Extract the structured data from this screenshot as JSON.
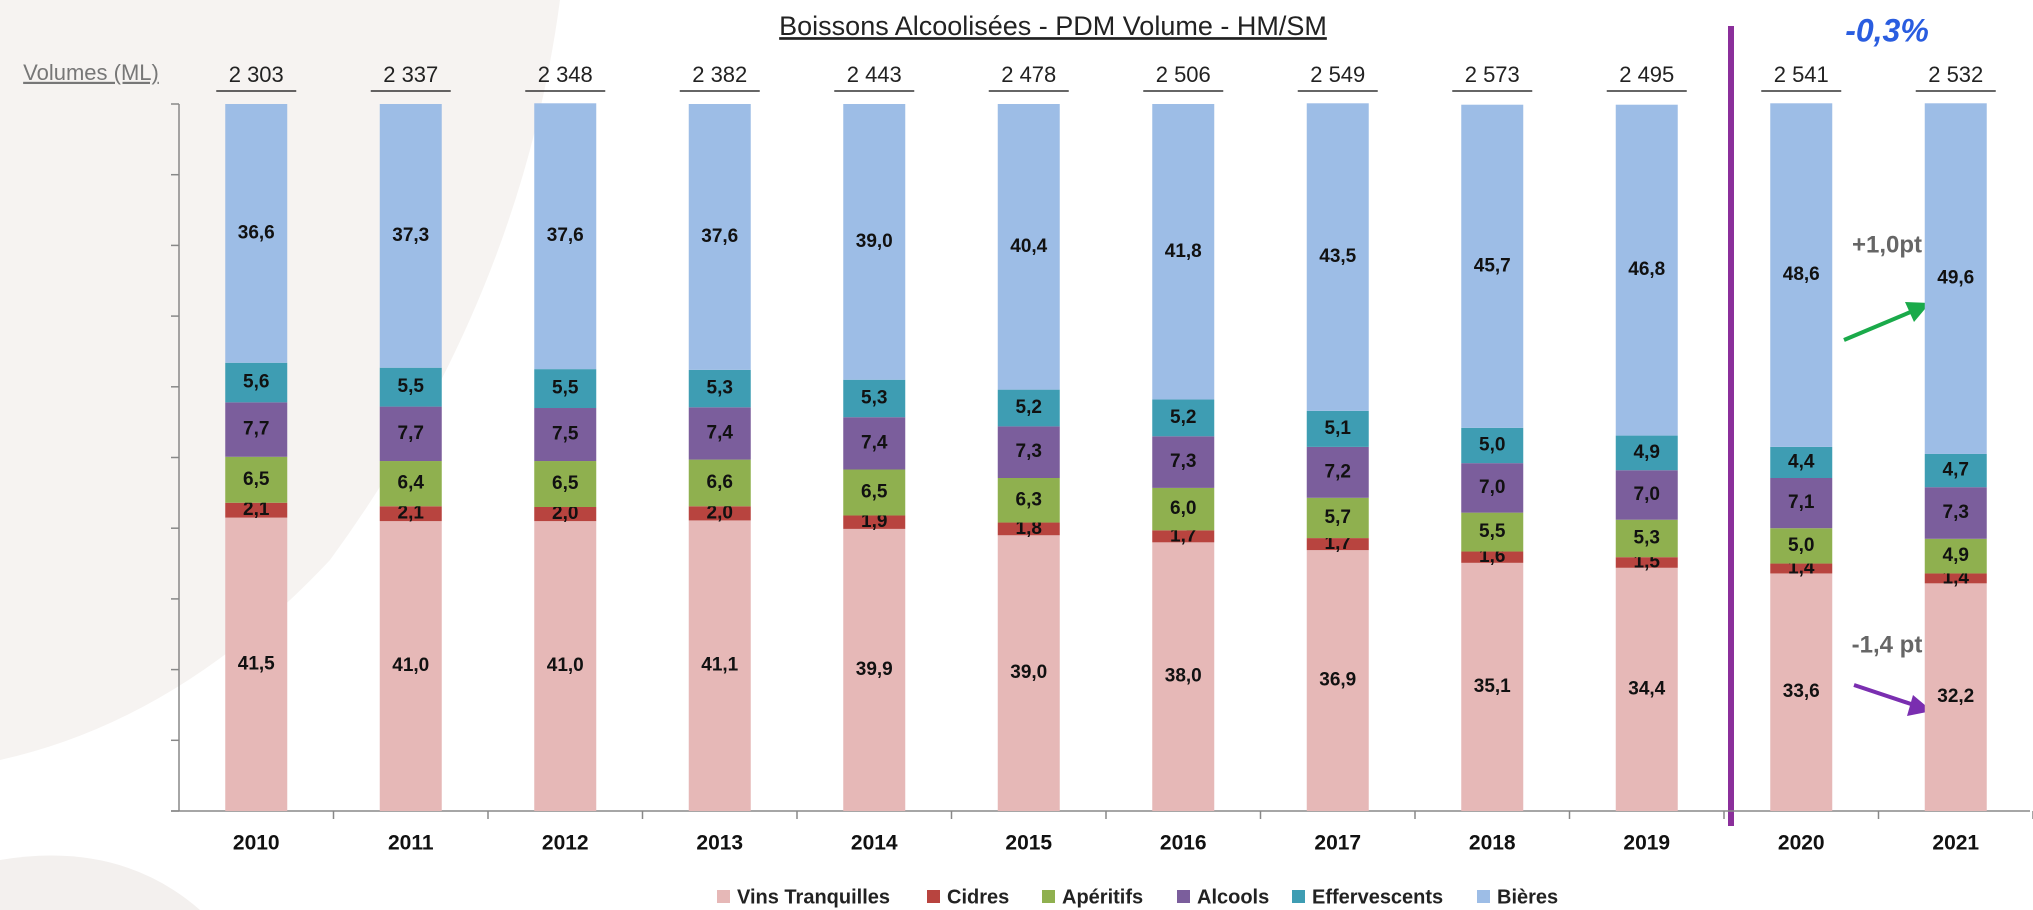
{
  "chart_data": {
    "type": "stacked-bar-100",
    "title": "Boissons Alcoolisées  - PDM Volume - HM/SM",
    "volumes_label": "Volumes (ML)",
    "volumes": [
      "2 303",
      "2 337",
      "2 348",
      "2 382",
      "2 443",
      "2 478",
      "2 506",
      "2 549",
      "2 573",
      "2 495",
      "2 541",
      "2 532"
    ],
    "categories": [
      "2010",
      "2011",
      "2012",
      "2013",
      "2014",
      "2015",
      "2016",
      "2017",
      "2018",
      "2019",
      "2020",
      "2021"
    ],
    "series": [
      {
        "name": "Vins Tranquilles",
        "color": "#e6b8b7",
        "values": [
          41.5,
          41.0,
          41.0,
          41.1,
          39.9,
          39.0,
          38.0,
          36.9,
          35.1,
          34.4,
          33.6,
          32.2
        ],
        "value_labels": [
          "41,5",
          "41,0",
          "41,0",
          "41,1",
          "39,9",
          "39,0",
          "38,0",
          "36,9",
          "35,1",
          "34,4",
          "33,6",
          "32,2"
        ]
      },
      {
        "name": "Cidres",
        "color": "#b8443f",
        "values": [
          2.1,
          2.1,
          2.0,
          2.0,
          1.9,
          1.8,
          1.7,
          1.7,
          1.6,
          1.5,
          1.4,
          1.4
        ],
        "value_labels": [
          "2,1",
          "2,1",
          "2,0",
          "2,0",
          "1,9",
          "1,8",
          "1,7",
          "1,7",
          "1,6",
          "1,5",
          "1,4",
          "1,4"
        ]
      },
      {
        "name": "Apéritifs",
        "color": "#8fb04f",
        "values": [
          6.5,
          6.4,
          6.5,
          6.6,
          6.5,
          6.3,
          6.0,
          5.7,
          5.5,
          5.3,
          5.0,
          4.9
        ],
        "value_labels": [
          "6,5",
          "6,4",
          "6,5",
          "6,6",
          "6,5",
          "6,3",
          "6,0",
          "5,7",
          "5,5",
          "5,3",
          "5,0",
          "4,9"
        ]
      },
      {
        "name": "Alcools",
        "color": "#7b5e9c",
        "values": [
          7.7,
          7.7,
          7.5,
          7.4,
          7.4,
          7.3,
          7.3,
          7.2,
          7.0,
          7.0,
          7.1,
          7.3
        ],
        "value_labels": [
          "7,7",
          "7,7",
          "7,5",
          "7,4",
          "7,4",
          "7,3",
          "7,3",
          "7,2",
          "7,0",
          "7,0",
          "7,1",
          "7,3"
        ]
      },
      {
        "name": "Effervescents",
        "color": "#3e9db3",
        "values": [
          5.6,
          5.5,
          5.5,
          5.3,
          5.3,
          5.2,
          5.2,
          5.1,
          5.0,
          4.9,
          4.4,
          4.7
        ],
        "value_labels": [
          "5,6",
          "5,5",
          "5,5",
          "5,3",
          "5,3",
          "5,2",
          "5,2",
          "5,1",
          "5,0",
          "4,9",
          "4,4",
          "4,7"
        ]
      },
      {
        "name": "Bières",
        "color": "#9dbde6",
        "values": [
          36.6,
          37.3,
          37.6,
          37.6,
          39.0,
          40.4,
          41.8,
          43.5,
          45.7,
          46.8,
          48.6,
          49.6
        ],
        "value_labels": [
          "36,6",
          "37,3",
          "37,6",
          "37,6",
          "39,0",
          "40,4",
          "41,8",
          "43,5",
          "45,7",
          "46,8",
          "48,6",
          "49,6"
        ]
      }
    ],
    "annotations": [
      "-0,3%",
      "+1,0pt",
      "-1,4 pt"
    ],
    "ylim": [
      0,
      100
    ],
    "yticks": [
      0,
      10,
      20,
      30,
      40,
      50,
      60,
      70,
      80,
      90,
      100
    ],
    "legend": "bottom"
  }
}
